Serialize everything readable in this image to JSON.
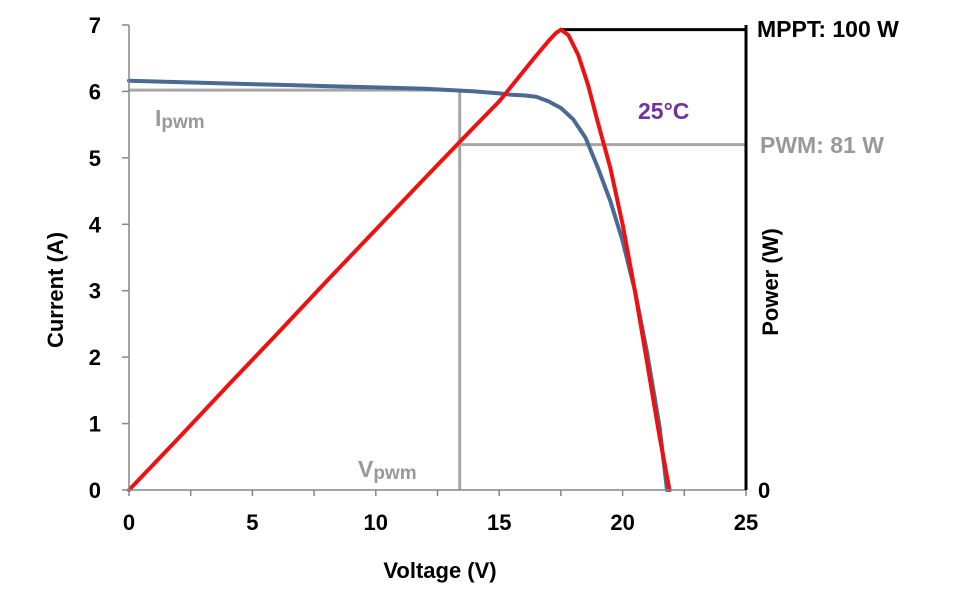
{
  "chart_data": {
    "type": "line",
    "xlabel": "Voltage (V)",
    "ylabel": "Current (A)",
    "y2label": "Power (W)",
    "xlim": [
      0,
      25
    ],
    "ylim": [
      0,
      7
    ],
    "xticks": [
      "0",
      "5",
      "10",
      "15",
      "20",
      "25"
    ],
    "yticks": [
      "0",
      "1",
      "2",
      "3",
      "4",
      "5",
      "6",
      "7"
    ],
    "y2ticks": [
      "0"
    ],
    "grid": false,
    "series": [
      {
        "role": "current",
        "color": "#4a6a94",
        "x": [
          0,
          2,
          4,
          6,
          8,
          10,
          12,
          14,
          15,
          15.5,
          16,
          16.5,
          17,
          17.5,
          18,
          18.5,
          19,
          19.5,
          20,
          20.5,
          21,
          21.5,
          21.8
        ],
        "y": [
          6.16,
          6.14,
          6.12,
          6.1,
          6.08,
          6.06,
          6.04,
          6.0,
          5.97,
          5.95,
          5.94,
          5.92,
          5.85,
          5.75,
          5.58,
          5.3,
          4.85,
          4.35,
          3.75,
          3.0,
          2.05,
          0.95,
          0.0
        ]
      },
      {
        "role": "power",
        "color": "#ee1111",
        "x": [
          0,
          2,
          4,
          6,
          8,
          10,
          12,
          14,
          15,
          16,
          16.5,
          17,
          17.3,
          17.5,
          17.8,
          18.2,
          18.6,
          19,
          19.5,
          20,
          20.5,
          21,
          21.5,
          21.9
        ],
        "y": [
          0.0,
          0.78,
          1.57,
          2.35,
          3.14,
          3.92,
          4.7,
          5.47,
          5.85,
          6.31,
          6.54,
          6.76,
          6.88,
          6.93,
          6.85,
          6.55,
          6.1,
          5.53,
          4.85,
          4.0,
          3.0,
          1.9,
          0.8,
          0.0
        ]
      }
    ],
    "annotations": {
      "temperature": {
        "text": "25°C",
        "color": "#7030a0"
      },
      "mppt": {
        "text": "MPPT: 100 W",
        "color": "#000000"
      },
      "pwm": {
        "text": "PWM: 81 W",
        "color": "#999999"
      },
      "ipwm": {
        "main": "I",
        "sub": "pwm",
        "color": "#999999"
      },
      "vpwm": {
        "main": "V",
        "sub": "pwm",
        "color": "#999999"
      }
    },
    "reference_lines": {
      "ipwm_current": 6.02,
      "vpwm_voltage": 13.4,
      "pwm_power_level": 5.2,
      "mppt_power_level": 6.93,
      "color": "#a6a6a6"
    }
  }
}
